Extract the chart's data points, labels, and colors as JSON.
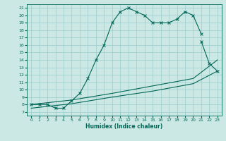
{
  "title": "",
  "xlabel": "Humidex (Indice chaleur)",
  "bg_color": "#cce8e4",
  "grid_color": "#99cccc",
  "line_color": "#006655",
  "xlim": [
    -0.5,
    23.5
  ],
  "ylim": [
    6.5,
    21.5
  ],
  "xticks": [
    0,
    1,
    2,
    3,
    4,
    5,
    6,
    7,
    8,
    9,
    10,
    11,
    12,
    13,
    14,
    15,
    16,
    17,
    18,
    19,
    20,
    21,
    22,
    23
  ],
  "yticks": [
    7,
    8,
    9,
    10,
    11,
    12,
    13,
    14,
    15,
    16,
    17,
    18,
    19,
    20,
    21
  ],
  "series1_x": [
    0,
    1,
    2,
    3,
    4,
    5,
    6,
    7,
    8,
    9,
    10,
    11,
    12,
    13,
    14,
    15,
    16,
    17,
    18,
    19,
    20,
    21
  ],
  "series1_y": [
    8.0,
    8.0,
    8.0,
    7.5,
    7.5,
    8.5,
    9.5,
    11.5,
    14.0,
    16.0,
    19.0,
    20.5,
    21.0,
    20.5,
    20.0,
    19.0,
    19.0,
    19.0,
    19.5,
    20.5,
    20.0,
    17.5
  ],
  "series2_x": [
    21,
    22,
    23
  ],
  "series2_y": [
    16.5,
    13.5,
    12.5
  ],
  "series3_x": [
    0,
    5,
    10,
    15,
    20,
    23
  ],
  "series3_y": [
    7.5,
    8.1,
    9.0,
    9.8,
    10.8,
    12.5
  ],
  "series4_x": [
    0,
    5,
    10,
    15,
    20,
    23
  ],
  "series4_y": [
    8.0,
    8.6,
    9.5,
    10.5,
    11.5,
    14.0
  ],
  "line_width": 0.8,
  "marker_size": 2.5,
  "marker_style": "x",
  "tick_fontsize": 4.5,
  "xlabel_fontsize": 5.5
}
